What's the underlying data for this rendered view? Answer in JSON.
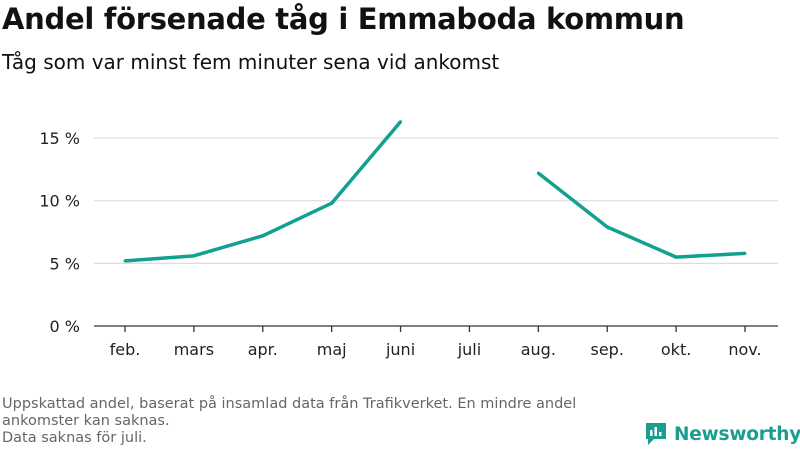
{
  "header": {
    "title": "Andel försenade tåg i Emmaboda kommun",
    "subtitle": "Tåg som var minst fem minuter sena vid ankomst"
  },
  "footer": {
    "note_line1": "Uppskattad andel, baserat på insamlad data från Trafikverket. En mindre andel ankomster kan saknas.",
    "note_line2": "Data saknas för juli.",
    "brand": "Newsworthy"
  },
  "colors": {
    "series": "#12a090",
    "grid": "#dddddd",
    "axis": "#333333",
    "brand": "#1a9e8f"
  },
  "icons": {
    "brand": "newsworthy-logo-icon"
  },
  "chart_data": {
    "type": "line",
    "title": "Andel försenade tåg i Emmaboda kommun",
    "subtitle": "Tåg som var minst fem minuter sena vid ankomst",
    "xlabel": "",
    "ylabel": "",
    "categories": [
      "feb.",
      "mars",
      "apr.",
      "maj",
      "juni",
      "juli",
      "aug.",
      "sep.",
      "okt.",
      "nov."
    ],
    "values": [
      5.2,
      5.6,
      7.2,
      9.8,
      16.3,
      null,
      12.2,
      7.9,
      5.5,
      5.8
    ],
    "ylim": [
      0,
      17
    ],
    "yticks": [
      0,
      5,
      10,
      15
    ],
    "ytick_labels": [
      "0 %",
      "5 %",
      "10 %",
      "15 %"
    ],
    "grid": true,
    "legend": "none"
  }
}
